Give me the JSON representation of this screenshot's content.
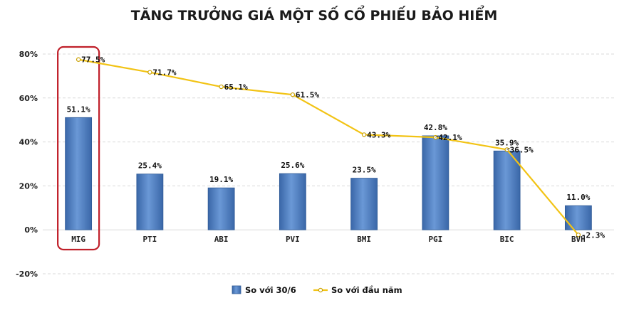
{
  "chart_data": {
    "type": "bar",
    "title": "TĂNG TRƯỞNG GIÁ MỘT SỐ CỔ PHIẾU BẢO HIỂM",
    "categories": [
      "MIG",
      "PTI",
      "ABI",
      "PVI",
      "BMI",
      "PGI",
      "BIC",
      "BVH"
    ],
    "series": [
      {
        "name": "So với 30/6",
        "type": "bar",
        "values": [
          51.1,
          25.4,
          19.1,
          25.6,
          23.5,
          42.8,
          35.9,
          11.0
        ],
        "labels": [
          "51.1%",
          "25.4%",
          "19.1%",
          "25.6%",
          "23.5%",
          "42.8%",
          "35.9%",
          "11.0%"
        ],
        "color": "#4f81bd"
      },
      {
        "name": "So với đầu năm",
        "type": "line",
        "values": [
          77.5,
          71.7,
          65.1,
          61.5,
          43.3,
          42.1,
          36.5,
          -2.3
        ],
        "labels": [
          "77.5%",
          "71.7%",
          "65.1%",
          "61.5%",
          "43.3%",
          "42.1%",
          "36.5%",
          "-2.3%"
        ],
        "color": "#f2c314"
      }
    ],
    "ylim": [
      -20,
      80
    ],
    "yticks": [
      -20,
      0,
      20,
      40,
      60,
      80
    ],
    "ytick_labels": [
      "-20%",
      "0%",
      "20%",
      "40%",
      "60%",
      "80%"
    ],
    "grid": true,
    "legend": "bottom",
    "highlight": {
      "category": "MIG",
      "color": "#c0202a"
    },
    "colors": {
      "gridline": "#d9d9d9",
      "bar_dark": "#2f5a96",
      "bar_light": "#6d9bd8"
    }
  }
}
